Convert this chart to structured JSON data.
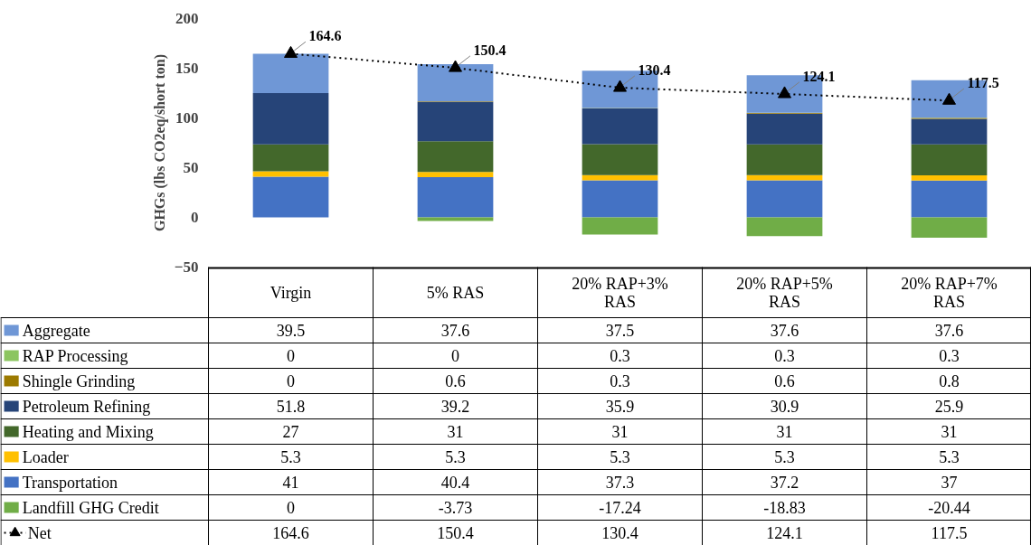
{
  "chart_data": {
    "type": "bar",
    "stacked": true,
    "categories": [
      "Virgin",
      "5% RAS",
      "20% RAP+3% RAS",
      "20% RAP+5% RAS",
      "20% RAP+7% RAS"
    ],
    "ylabel": "GHGs (lbs CO2eq/short ton)",
    "ylim": [
      -50,
      200
    ],
    "yticks": [
      -50,
      0,
      50,
      100,
      150,
      200
    ],
    "data_labels": true,
    "legend": "bottom left",
    "marker": "triangle",
    "line_style": "dotted",
    "series": [
      {
        "name": "Transportation",
        "color": "#4472c4",
        "values": [
          41,
          40.4,
          37.3,
          37.2,
          37
        ]
      },
      {
        "name": "Loader",
        "color": "#ffc000",
        "values": [
          5.3,
          5.3,
          5.3,
          5.3,
          5.3
        ]
      },
      {
        "name": "Heating and Mixing",
        "color": "#43682b",
        "values": [
          27,
          31,
          31,
          31,
          31
        ]
      },
      {
        "name": "Petroleum Refining",
        "color": "#264478",
        "values": [
          51.8,
          39.2,
          35.9,
          30.9,
          25.9
        ]
      },
      {
        "name": "Shingle Grinding",
        "color": "#9c7a00",
        "values": [
          0,
          0.6,
          0.3,
          0.6,
          0.8
        ]
      },
      {
        "name": "RAP Processing",
        "color": "#8cc560",
        "values": [
          0,
          0,
          0.3,
          0.3,
          0.3
        ]
      },
      {
        "name": "Aggregate",
        "color": "#6f97d6",
        "values": [
          39.5,
          37.6,
          37.5,
          37.6,
          37.6
        ]
      },
      {
        "name": "Landfill GHG Credit",
        "color": "#70ad47",
        "values": [
          0,
          -3.73,
          -17.24,
          -18.83,
          -20.44
        ]
      },
      {
        "name": "Net",
        "type": "line",
        "color": "#000000",
        "values": [
          164.6,
          150.4,
          130.4,
          124.1,
          117.5
        ],
        "value_labels": [
          "164.6",
          "150.4",
          "130.4",
          "124.1",
          "117.5"
        ]
      }
    ]
  }
}
